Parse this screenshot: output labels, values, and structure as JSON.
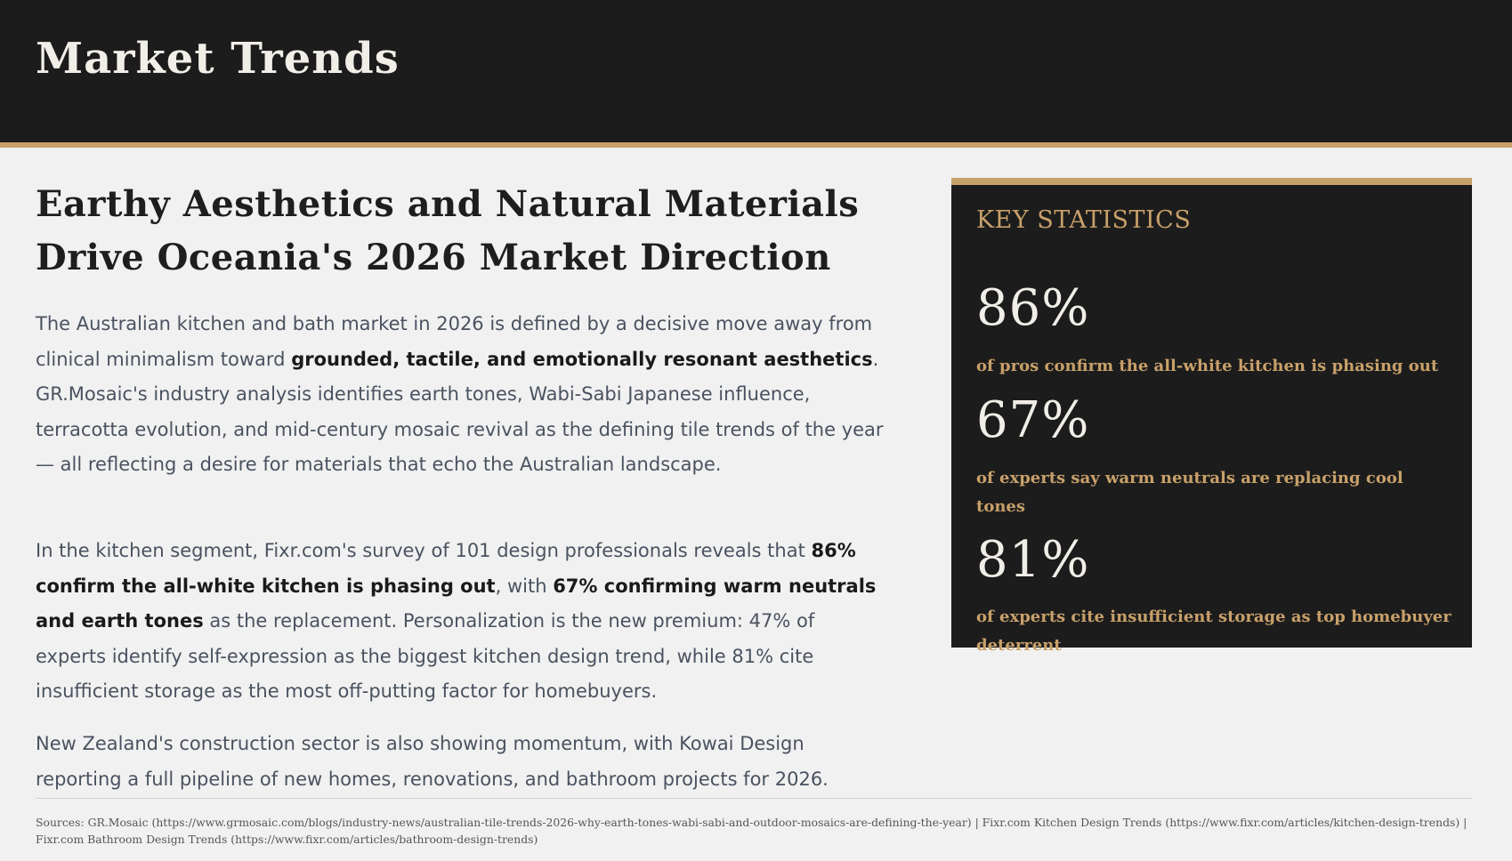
{
  "header": {
    "title": "Market Trends"
  },
  "article": {
    "headline_line1": "Earthy Aesthetics and Natural Materials",
    "headline_line2": "Drive Oceania's 2026 Market Direction",
    "p1": {
      "a": "The Australian kitchen and bath market in 2026 is defined by a decisive move away from clinical minimalism toward ",
      "b": "grounded, tactile, and emotionally resonant aesthetics",
      "c": ". GR.Mosaic's industry analysis identifies earth tones, Wabi-Sabi Japanese influence, terracotta evolution, and mid-century mosaic revival as the defining tile trends of the year — all reflecting a desire for materials that echo the Australian landscape."
    },
    "p2": {
      "a": "In the kitchen segment, Fixr.com's survey of 101 design professionals reveals that ",
      "b": "86% confirm the all-white kitchen is phasing out",
      "c": ", with ",
      "d": "67% confirming warm neutrals and earth tones",
      "e": " as the replacement. Personalization is the new premium: 47% of experts identify self-expression as the biggest kitchen design trend, while 81% cite insufficient storage as the most off-putting factor for homebuyers."
    },
    "p3": "New Zealand's construction sector is also showing momentum, with Kowai Design reporting a full pipeline of new homes, renovations, and bathroom projects for 2026."
  },
  "stats": {
    "title": "KEY STATISTICS",
    "items": [
      {
        "value": "86%",
        "label": "of pros confirm the all-white kitchen is phasing out"
      },
      {
        "value": "67%",
        "label": "of experts say warm neutrals are replacing cool tones"
      },
      {
        "value": "81%",
        "label": "of experts cite insufficient storage as top homebuyer deterrent"
      }
    ]
  },
  "sources": "Sources: GR.Mosaic (https://www.grmosaic.com/blogs/industry-news/australian-tile-trends-2026-why-earth-tones-wabi-sabi-and-outdoor-mosaics-are-defining-the-year) | Fixr.com Kitchen Design Trends (https://www.fixr.com/articles/kitchen-design-trends) | Fixr.com Bathroom Design Trends (https://www.fixr.com/articles/bathroom-design-trends)",
  "colors": {
    "header_bg": "#1c1c1c",
    "accent": "#c8a06a",
    "page_bg": "#f1f1f1",
    "body_text": "#4a5260"
  }
}
